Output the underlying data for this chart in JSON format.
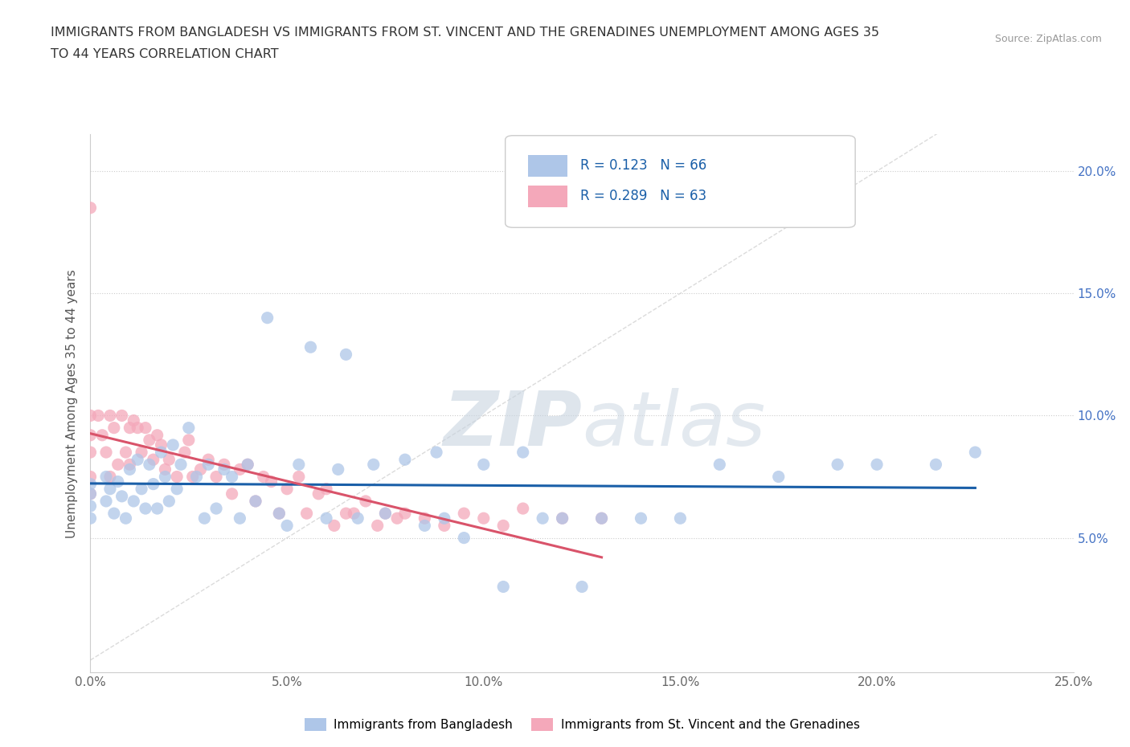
{
  "title_line1": "IMMIGRANTS FROM BANGLADESH VS IMMIGRANTS FROM ST. VINCENT AND THE GRENADINES UNEMPLOYMENT AMONG AGES 35",
  "title_line2": "TO 44 YEARS CORRELATION CHART",
  "source": "Source: ZipAtlas.com",
  "ylabel": "Unemployment Among Ages 35 to 44 years",
  "r_bangladesh": 0.123,
  "n_bangladesh": 66,
  "r_stvincent": 0.289,
  "n_stvincent": 63,
  "color_bangladesh": "#aec6e8",
  "color_stvincent": "#f4a8ba",
  "line_bangladesh": "#1a5fa8",
  "line_stvincent": "#d9536a",
  "diagonal_color": "#cccccc",
  "watermark_zip": "ZIP",
  "watermark_atlas": "atlas",
  "xlim": [
    0.0,
    0.25
  ],
  "ylim": [
    0.0,
    0.21
  ],
  "xticks": [
    0.0,
    0.05,
    0.1,
    0.15,
    0.2,
    0.25
  ],
  "yticks": [
    0.05,
    0.1,
    0.15,
    0.2
  ],
  "xtick_labels": [
    "0.0%",
    "5.0%",
    "10.0%",
    "15.0%",
    "20.0%",
    "25.0%"
  ],
  "right_ytick_labels": [
    "5.0%",
    "10.0%",
    "15.0%",
    "20.0%"
  ],
  "bangladesh_x": [
    0.0,
    0.0,
    0.0,
    0.0,
    0.004,
    0.004,
    0.005,
    0.006,
    0.007,
    0.008,
    0.009,
    0.01,
    0.011,
    0.012,
    0.013,
    0.014,
    0.015,
    0.016,
    0.017,
    0.018,
    0.019,
    0.02,
    0.021,
    0.022,
    0.023,
    0.025,
    0.027,
    0.029,
    0.03,
    0.032,
    0.034,
    0.036,
    0.038,
    0.04,
    0.042,
    0.045,
    0.048,
    0.05,
    0.053,
    0.056,
    0.06,
    0.063,
    0.065,
    0.068,
    0.072,
    0.075,
    0.08,
    0.085,
    0.088,
    0.09,
    0.095,
    0.1,
    0.105,
    0.11,
    0.115,
    0.12,
    0.125,
    0.13,
    0.14,
    0.15,
    0.16,
    0.175,
    0.19,
    0.2,
    0.215,
    0.225
  ],
  "bangladesh_y": [
    0.072,
    0.068,
    0.063,
    0.058,
    0.075,
    0.065,
    0.07,
    0.06,
    0.073,
    0.067,
    0.058,
    0.078,
    0.065,
    0.082,
    0.07,
    0.062,
    0.08,
    0.072,
    0.062,
    0.085,
    0.075,
    0.065,
    0.088,
    0.07,
    0.08,
    0.095,
    0.075,
    0.058,
    0.08,
    0.062,
    0.078,
    0.075,
    0.058,
    0.08,
    0.065,
    0.14,
    0.06,
    0.055,
    0.08,
    0.128,
    0.058,
    0.078,
    0.125,
    0.058,
    0.08,
    0.06,
    0.082,
    0.055,
    0.085,
    0.058,
    0.05,
    0.08,
    0.03,
    0.085,
    0.058,
    0.058,
    0.03,
    0.058,
    0.058,
    0.058,
    0.08,
    0.075,
    0.08,
    0.08,
    0.08,
    0.085
  ],
  "stvincent_x": [
    0.0,
    0.0,
    0.0,
    0.0,
    0.0,
    0.0,
    0.002,
    0.003,
    0.004,
    0.005,
    0.005,
    0.006,
    0.007,
    0.008,
    0.009,
    0.01,
    0.01,
    0.011,
    0.012,
    0.013,
    0.014,
    0.015,
    0.016,
    0.017,
    0.018,
    0.019,
    0.02,
    0.022,
    0.024,
    0.025,
    0.026,
    0.028,
    0.03,
    0.032,
    0.034,
    0.036,
    0.038,
    0.04,
    0.042,
    0.044,
    0.046,
    0.048,
    0.05,
    0.053,
    0.055,
    0.058,
    0.06,
    0.062,
    0.065,
    0.067,
    0.07,
    0.073,
    0.075,
    0.078,
    0.08,
    0.085,
    0.09,
    0.095,
    0.1,
    0.105,
    0.11,
    0.12,
    0.13
  ],
  "stvincent_y": [
    0.185,
    0.1,
    0.092,
    0.085,
    0.075,
    0.068,
    0.1,
    0.092,
    0.085,
    0.1,
    0.075,
    0.095,
    0.08,
    0.1,
    0.085,
    0.095,
    0.08,
    0.098,
    0.095,
    0.085,
    0.095,
    0.09,
    0.082,
    0.092,
    0.088,
    0.078,
    0.082,
    0.075,
    0.085,
    0.09,
    0.075,
    0.078,
    0.082,
    0.075,
    0.08,
    0.068,
    0.078,
    0.08,
    0.065,
    0.075,
    0.073,
    0.06,
    0.07,
    0.075,
    0.06,
    0.068,
    0.07,
    0.055,
    0.06,
    0.06,
    0.065,
    0.055,
    0.06,
    0.058,
    0.06,
    0.058,
    0.055,
    0.06,
    0.058,
    0.055,
    0.062,
    0.058,
    0.058
  ]
}
